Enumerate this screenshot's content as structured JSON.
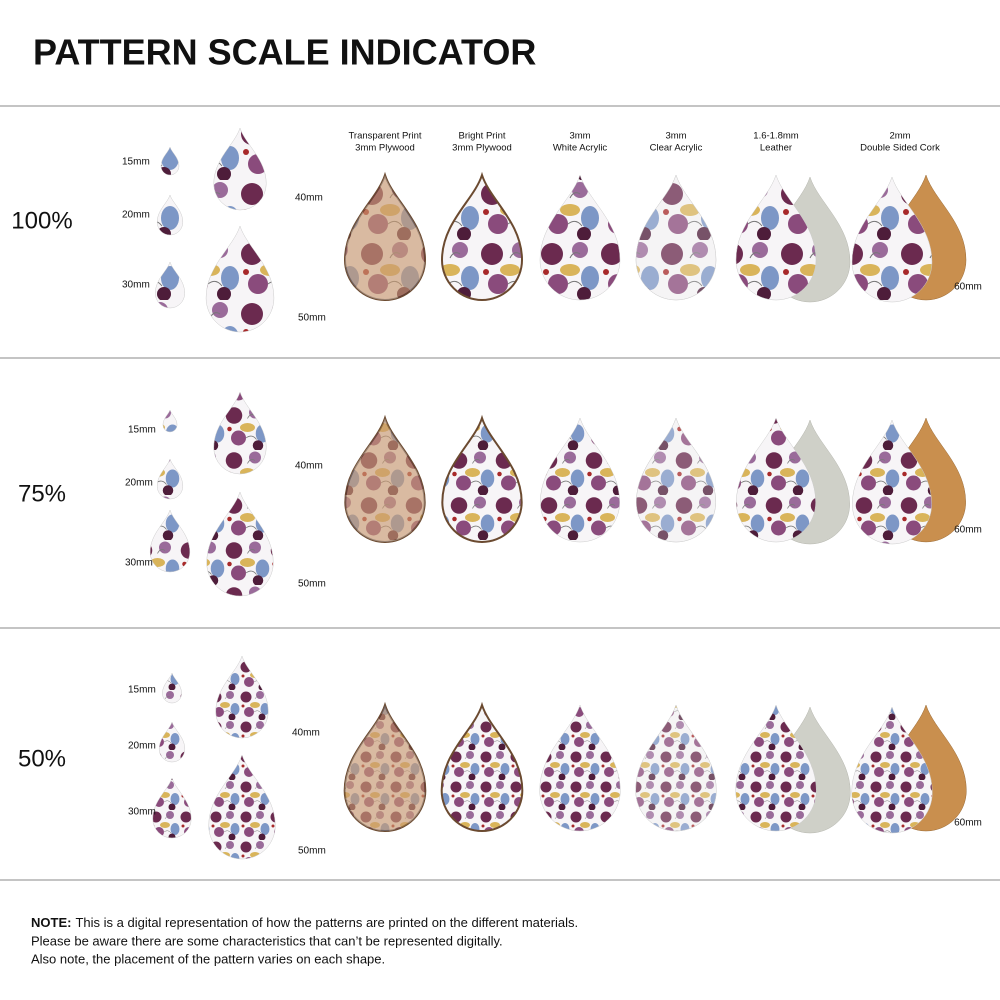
{
  "header": {
    "title": "PATTERN SCALE INDICATOR"
  },
  "materials": [
    [
      "Transparent Print",
      "3mm Plywood"
    ],
    [
      "Bright Print",
      "3mm Plywood"
    ],
    [
      "3mm",
      "White Acrylic"
    ],
    [
      "3mm",
      "Clear Acrylic"
    ],
    [
      "1.6-1.8mm",
      "Leather"
    ],
    [
      "2mm",
      "Double Sided Cork"
    ]
  ],
  "sections": [
    {
      "scale": "100%",
      "sizes": [
        "15mm",
        "20mm",
        "30mm",
        "40mm",
        "50mm"
      ],
      "material_size": "60mm"
    },
    {
      "scale": "75%",
      "sizes": [
        "15mm",
        "20mm",
        "30mm",
        "40mm",
        "50mm"
      ],
      "material_size": "60mm"
    },
    {
      "scale": "50%",
      "sizes": [
        "15mm",
        "20mm",
        "30mm",
        "40mm",
        "50mm"
      ],
      "material_size": "60mm"
    }
  ],
  "note": {
    "label": "NOTE:",
    "lines": [
      "This is a digital representation of how the patterns are printed on the different materials.",
      "Please be aware there are some characteristics that can’t be represented digitally.",
      "Also note, the placement of the pattern varies on each shape."
    ]
  }
}
